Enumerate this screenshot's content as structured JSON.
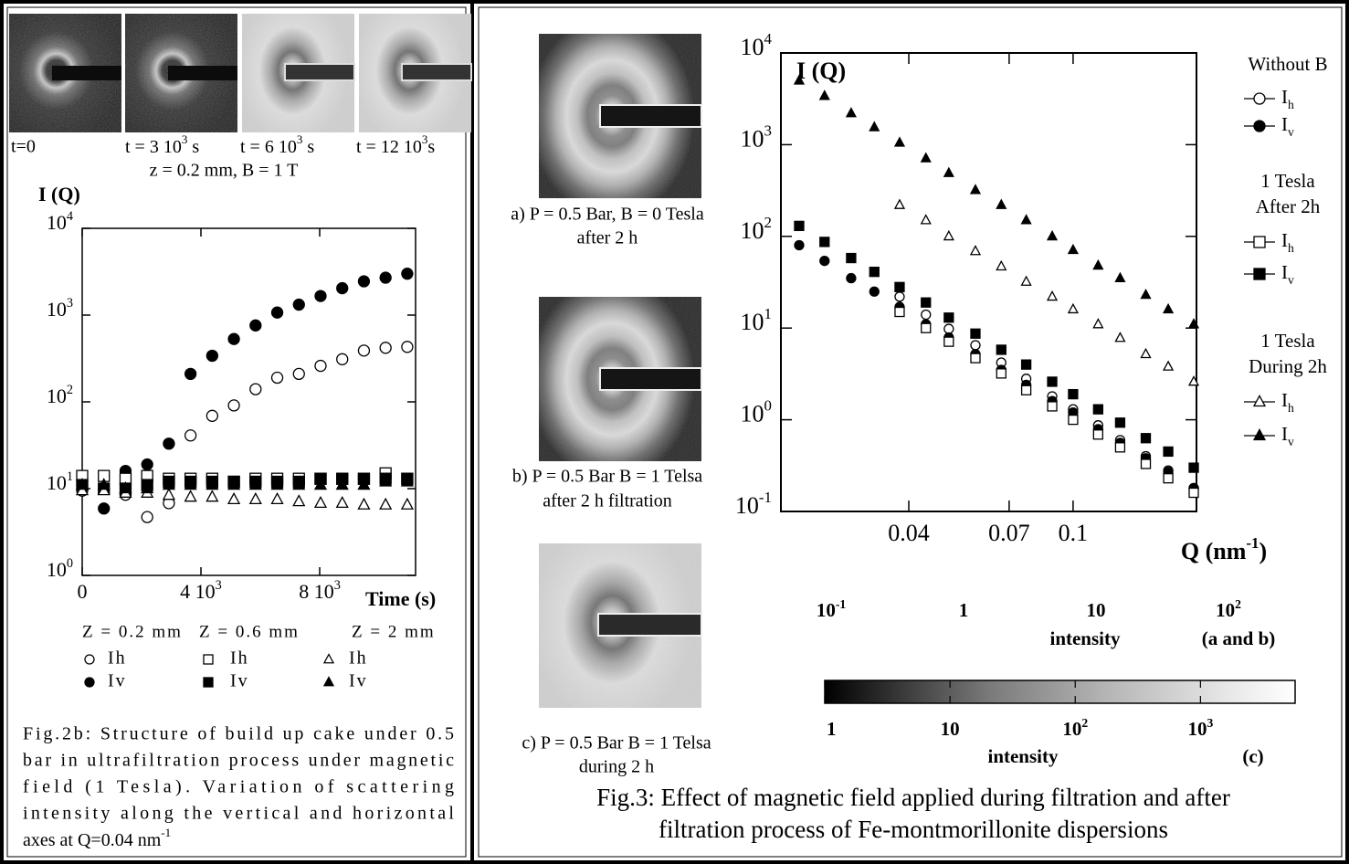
{
  "time_images": {
    "captions": [
      "t=0",
      [
        "t = 3 10",
        {
          "sup": "3"
        },
        " s"
      ],
      [
        "t = 6 10",
        {
          "sup": "3"
        },
        " s"
      ],
      [
        "t = 12 10",
        {
          "sup": "3"
        },
        "s"
      ]
    ],
    "condition": "z = 0.2 mm, B = 1 T"
  },
  "pattern_captions": [
    [
      "a) P = 0.5 Bar, B = 0 Tesla",
      "after 2 h"
    ],
    [
      "b) P = 0.5 Bar B = 1 Telsa",
      "after 2 h filtration"
    ],
    [
      "c) P = 0.5 Bar B = 1 Telsa",
      "during 2 h"
    ]
  ],
  "chart_data": [
    {
      "type": "scatter",
      "y_label": "I (Q)",
      "x_label": "Time (s)",
      "ylog": true,
      "xlim": [
        0,
        11230
      ],
      "ylim": [
        1,
        10000
      ],
      "xticks": [
        0,
        {
          "value": 4000,
          "label": [
            "4 10",
            {
              "sup": "3"
            }
          ]
        },
        {
          "value": 8000,
          "label": [
            "8 10",
            {
              "sup": "3"
            }
          ]
        }
      ],
      "yticks": [
        {
          "value": 1,
          "label": [
            "10",
            {
              "sup": "0"
            }
          ]
        },
        {
          "value": 10,
          "label": [
            "10",
            {
              "sup": "1"
            }
          ]
        },
        {
          "value": 100,
          "label": [
            "10",
            {
              "sup": "2"
            }
          ]
        },
        {
          "value": 1000,
          "label": [
            "10",
            {
              "sup": "3"
            }
          ]
        },
        {
          "value": 10000,
          "label": [
            "10",
            {
              "sup": "4"
            }
          ]
        }
      ],
      "x": [
        0,
        730,
        1460,
        2190,
        2920,
        3650,
        4380,
        5110,
        5840,
        6570,
        7300,
        8030,
        8760,
        9490,
        10220,
        10950
      ],
      "series": [
        {
          "name": "Ih",
          "legend_title": [
            "Z = 0.2 mm"
          ],
          "marker": "circle",
          "filled": false,
          "color": "#000000",
          "values": [
            9.5,
            null,
            8.5,
            4.7,
            6.8,
            41,
            69,
            91,
            140,
            190,
            210,
            260,
            310,
            390,
            420,
            430
          ]
        },
        {
          "name": "Iv",
          "marker": "circle",
          "filled": true,
          "color": "#000000",
          "values": [
            11,
            5.9,
            16,
            19,
            33,
            210,
            340,
            530,
            760,
            1070,
            1320,
            1660,
            2040,
            2450,
            2700,
            3000
          ]
        },
        {
          "name": "Ih",
          "legend_title": [
            "Z = 0.6 mm"
          ],
          "marker": "square",
          "filled": false,
          "color": "#000000",
          "values": [
            14,
            14,
            13,
            14,
            13,
            13,
            13,
            12,
            13,
            13,
            13,
            13,
            13,
            13,
            15,
            13
          ]
        },
        {
          "name": "Iv",
          "marker": "square",
          "filled": true,
          "color": "#000000",
          "values": [
            11,
            10,
            10,
            11,
            12,
            12,
            12,
            12,
            12,
            12,
            12,
            13,
            13,
            13,
            13,
            13
          ]
        },
        {
          "name": "Ih",
          "legend_title": [
            "Z = 2 mm"
          ],
          "marker": "triangle",
          "filled": false,
          "color": "#000000",
          "values": [
            9.5,
            9.5,
            8.9,
            8.9,
            8.4,
            8.0,
            8.0,
            7.5,
            7.5,
            7.5,
            7.1,
            6.8,
            6.8,
            6.5,
            6.5,
            6.5
          ]
        },
        {
          "name": "Iv",
          "marker": "triangle",
          "filled": true,
          "color": "#000000",
          "values": [
            11,
            11,
            10,
            10,
            11,
            11,
            11,
            11,
            11,
            11,
            11,
            11,
            11,
            11,
            12,
            12
          ]
        }
      ]
    },
    {
      "type": "scatter",
      "y_label": "I (Q)",
      "x_label": [
        "Q (nm",
        {
          "sup": "-1"
        },
        ")"
      ],
      "xlog": true,
      "ylog": true,
      "xlim": [
        0.0196,
        0.199
      ],
      "ylim": [
        0.1,
        10000
      ],
      "xticks": [
        0.04,
        0.07,
        0.1
      ],
      "yticks": [
        {
          "value": 0.1,
          "label": [
            "10",
            {
              "sup": "-1"
            }
          ]
        },
        {
          "value": 1,
          "label": [
            "10",
            {
              "sup": "0"
            }
          ]
        },
        {
          "value": 10,
          "label": [
            "10",
            {
              "sup": "1"
            }
          ]
        },
        {
          "value": 100,
          "label": [
            "10",
            {
              "sup": "2"
            }
          ]
        },
        {
          "value": 1000,
          "label": [
            "10",
            {
              "sup": "3"
            }
          ]
        },
        {
          "value": 10000,
          "label": [
            "10",
            {
              "sup": "4"
            }
          ]
        }
      ],
      "x": [
        0.0217,
        0.025,
        0.029,
        0.033,
        0.038,
        0.044,
        0.05,
        0.058,
        0.067,
        0.077,
        0.089,
        0.1,
        0.115,
        0.13,
        0.15,
        0.17,
        0.196
      ],
      "series": [
        {
          "name": [
            "I",
            {
              "sub": "h"
            }
          ],
          "legend_title": [
            "Without B"
          ],
          "marker": "circle",
          "filled": false,
          "color": "#000000",
          "values": [
            null,
            null,
            null,
            null,
            22,
            14,
            9.8,
            6.5,
            4.2,
            2.8,
            1.8,
            1.3,
            0.87,
            0.6,
            0.4,
            0.28,
            0.18
          ]
        },
        {
          "name": [
            "I",
            {
              "sub": "v"
            }
          ],
          "marker": "circle",
          "filled": true,
          "color": "#000000",
          "values": [
            80,
            54,
            35,
            25,
            17,
            11,
            7.9,
            5.2,
            3.5,
            2.4,
            1.6,
            1.2,
            0.79,
            0.56,
            0.38,
            0.27,
            0.18
          ]
        },
        {
          "name": [
            "I",
            {
              "sub": "h"
            }
          ],
          "legend_title": [
            "1 Tesla",
            "After 2h"
          ],
          "marker": "square",
          "filled": false,
          "color": "#000000",
          "values": [
            null,
            null,
            null,
            null,
            15,
            10,
            7.1,
            4.7,
            3.2,
            2.1,
            1.4,
            1.0,
            0.69,
            0.5,
            0.33,
            0.23,
            0.16
          ]
        },
        {
          "name": [
            "I",
            {
              "sub": "v"
            }
          ],
          "marker": "square",
          "filled": true,
          "color": "#000000",
          "values": [
            130,
            87,
            58,
            41,
            28,
            19,
            13,
            8.7,
            5.8,
            4.0,
            2.6,
            1.9,
            1.3,
            0.93,
            0.63,
            0.45,
            0.3
          ]
        },
        {
          "name": [
            "I",
            {
              "sub": "h"
            }
          ],
          "legend_title": [
            "1 Tesla",
            "During 2h"
          ],
          "marker": "triangle",
          "filled": false,
          "color": "#000000",
          "values": [
            null,
            null,
            null,
            null,
            220,
            150,
            100,
            69,
            47,
            32,
            22,
            16,
            11,
            7.8,
            5.2,
            3.8,
            2.6
          ]
        },
        {
          "name": [
            "I",
            {
              "sub": "v"
            }
          ],
          "marker": "triangle",
          "filled": true,
          "color": "#000000",
          "values": [
            5000,
            3400,
            2200,
            1550,
            1050,
            710,
            490,
            320,
            220,
            150,
            100,
            71,
            48,
            35,
            23,
            16,
            11
          ]
        }
      ]
    }
  ],
  "colorbar_ab": {
    "ticks": [
      {
        "value": 0.1,
        "label": [
          "10",
          {
            "sup": "-1"
          }
        ]
      },
      1,
      10,
      {
        "value": 100,
        "label": [
          "10",
          {
            "sup": "2"
          }
        ]
      }
    ],
    "label": "intensity",
    "note": "(a and b)"
  },
  "colorbar_c": {
    "lim": [
      1,
      5700
    ],
    "ticks": [
      1,
      10,
      {
        "value": 100,
        "label": [
          "10",
          {
            "sup": "2"
          }
        ]
      },
      {
        "value": 1000,
        "label": [
          "10",
          {
            "sup": "3"
          }
        ]
      }
    ],
    "label": "intensity",
    "note": "(c)"
  },
  "fig2b_caption": [
    "Fig.2b: Structure of build up cake under 0.5",
    "bar in ultrafiltration process under magnetic",
    "field (1 Tesla). Variation of scattering",
    "intensity along the vertical and horizontal",
    [
      "axes at Q=0.04 nm",
      {
        "sup": "-1"
      }
    ]
  ],
  "fig3_caption": [
    "Fig.3: Effect of magnetic field applied during filtration and after",
    "filtration process of Fe-montmorillonite dispersions"
  ]
}
